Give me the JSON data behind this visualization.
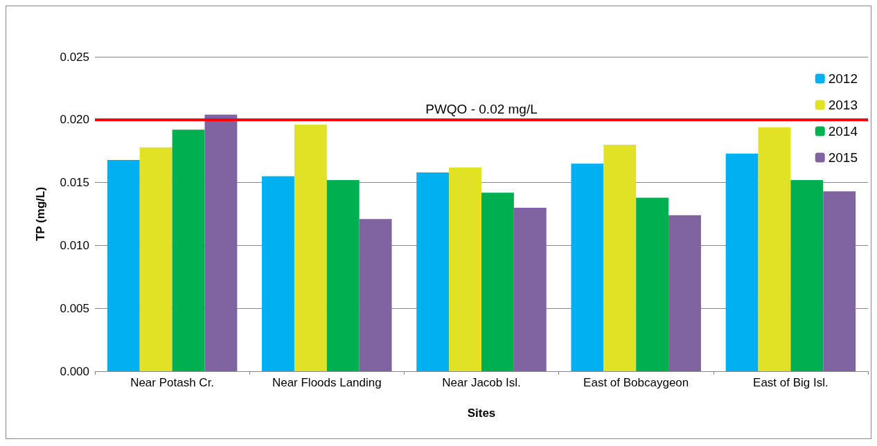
{
  "chart_data": {
    "type": "bar",
    "xlabel": "Sites",
    "ylabel": "TP (mg/L)",
    "categories": [
      "Near Potash Cr.",
      "Near Floods Landing",
      "Near Jacob Isl.",
      "East of Bobcaygeon",
      "East of Big Isl."
    ],
    "series": [
      {
        "name": "2012",
        "color": "#00b0f0",
        "values": [
          0.0168,
          0.0155,
          0.0158,
          0.0165,
          0.0173
        ]
      },
      {
        "name": "2013",
        "color": "#e1e125",
        "values": [
          0.0178,
          0.0196,
          0.0162,
          0.018,
          0.0194
        ]
      },
      {
        "name": "2014",
        "color": "#00b050",
        "values": [
          0.0192,
          0.0152,
          0.0142,
          0.0138,
          0.0152
        ]
      },
      {
        "name": "2015",
        "color": "#8064a2",
        "values": [
          0.0204,
          0.0121,
          0.013,
          0.0124,
          0.0143
        ]
      }
    ],
    "ylim": [
      0,
      0.025
    ],
    "yticks": [
      {
        "value": 0,
        "label": "0.000"
      },
      {
        "value": 0.005,
        "label": "0.005"
      },
      {
        "value": 0.01,
        "label": "0.010"
      },
      {
        "value": 0.015,
        "label": "0.015"
      },
      {
        "value": 0.02,
        "label": "0.020"
      },
      {
        "value": 0.025,
        "label": "0.025"
      }
    ],
    "ref_lines": [
      {
        "axis": "y",
        "value": 0.02,
        "label": "PWQO - 0.02 mg/L",
        "color": "#ff0000"
      }
    ],
    "grid": "y",
    "legend": "top right"
  }
}
